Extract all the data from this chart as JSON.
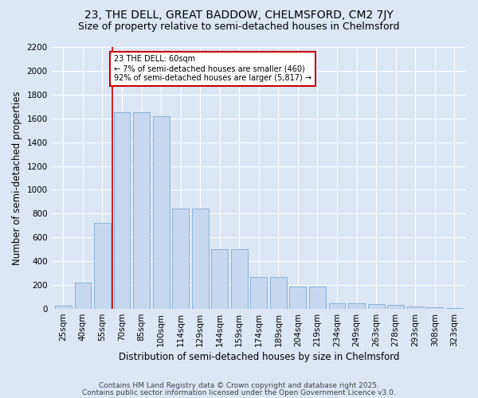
{
  "title1": "23, THE DELL, GREAT BADDOW, CHELMSFORD, CM2 7JY",
  "title2": "Size of property relative to semi-detached houses in Chelmsford",
  "xlabel": "Distribution of semi-detached houses by size in Chelmsford",
  "ylabel": "Number of semi-detached properties",
  "categories": [
    "25sqm",
    "40sqm",
    "55sqm",
    "70sqm",
    "85sqm",
    "100sqm",
    "114sqm",
    "129sqm",
    "144sqm",
    "159sqm",
    "174sqm",
    "189sqm",
    "204sqm",
    "219sqm",
    "234sqm",
    "249sqm",
    "263sqm",
    "278sqm",
    "293sqm",
    "308sqm",
    "323sqm"
  ],
  "values": [
    30,
    220,
    720,
    1650,
    1650,
    1620,
    840,
    840,
    500,
    500,
    270,
    270,
    185,
    185,
    50,
    50,
    40,
    35,
    20,
    15,
    8
  ],
  "bar_color": "#c5d8f0",
  "bar_edge_color": "#7aadd4",
  "vline_color": "#cc0000",
  "annotation_text": "23 THE DELL: 60sqm\n← 7% of semi-detached houses are smaller (460)\n92% of semi-detached houses are larger (5,817) →",
  "annotation_box_color": "#ffffff",
  "annotation_box_edge": "#cc0000",
  "ylim": [
    0,
    2200
  ],
  "yticks": [
    0,
    200,
    400,
    600,
    800,
    1000,
    1200,
    1400,
    1600,
    1800,
    2000,
    2200
  ],
  "footer1": "Contains HM Land Registry data © Crown copyright and database right 2025.",
  "footer2": "Contains public sector information licensed under the Open Government Licence v3.0.",
  "bg_color": "#dce6f5",
  "plot_bg_color": "#dce6f5",
  "title_fontsize": 10,
  "subtitle_fontsize": 9,
  "tick_fontsize": 7.5,
  "label_fontsize": 8.5,
  "footer_fontsize": 6.5
}
